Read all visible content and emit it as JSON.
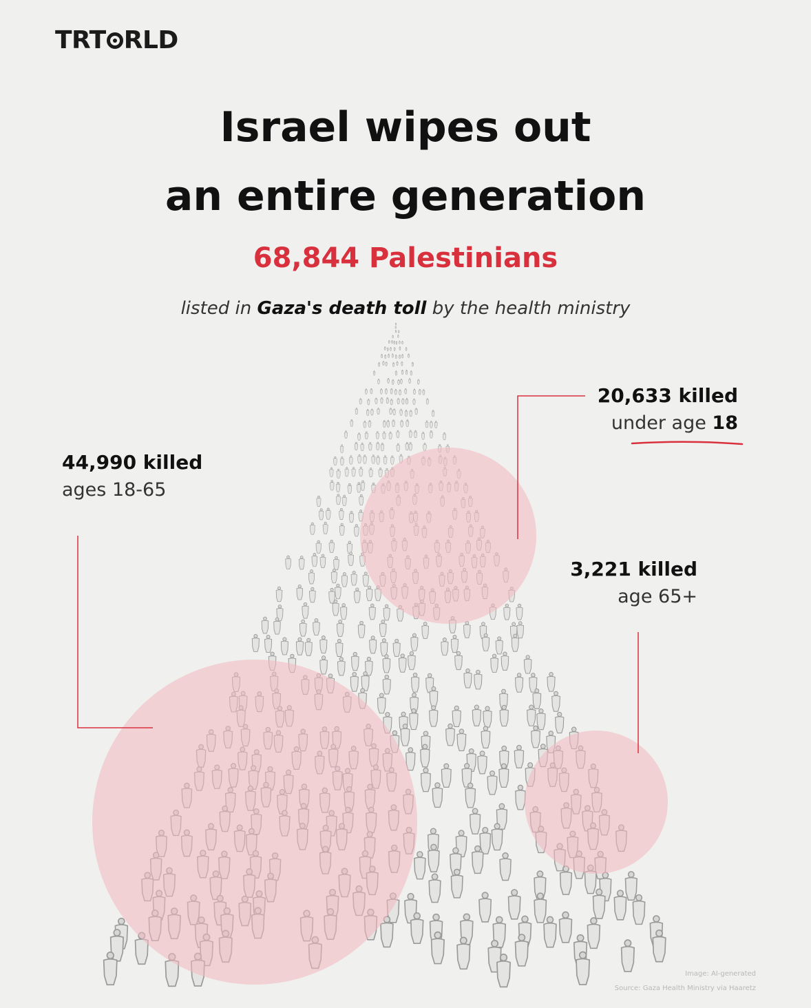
{
  "brand": {
    "logo_left": "TRT",
    "logo_o": "O",
    "logo_right": "RLD",
    "logo_icon": "trt-world-logo-icon"
  },
  "title": {
    "line1": "Israel wipes out",
    "line2": "an entire generation"
  },
  "headline_count": "68,844 Palestinians",
  "subtitle": {
    "pre": "listed in",
    "bold": "Gaza's death toll",
    "post": "by the health ministry"
  },
  "stats": {
    "adults": {
      "count": "44,990 killed",
      "label": "ages 18-65"
    },
    "children": {
      "count": "20,633 killed",
      "label_pre": "under age",
      "label_bold": "18"
    },
    "elderly": {
      "count": "3,221 killed",
      "label": "age 65+"
    }
  },
  "credits": {
    "image": "Image: AI-generated",
    "source": "Source: Gaza Health Ministry via Haaretz"
  },
  "colors": {
    "accent": "#d9303e",
    "highlight": "#f2c4c8",
    "background": "#f0f0ee",
    "sketch": "#9a9a9a"
  }
}
